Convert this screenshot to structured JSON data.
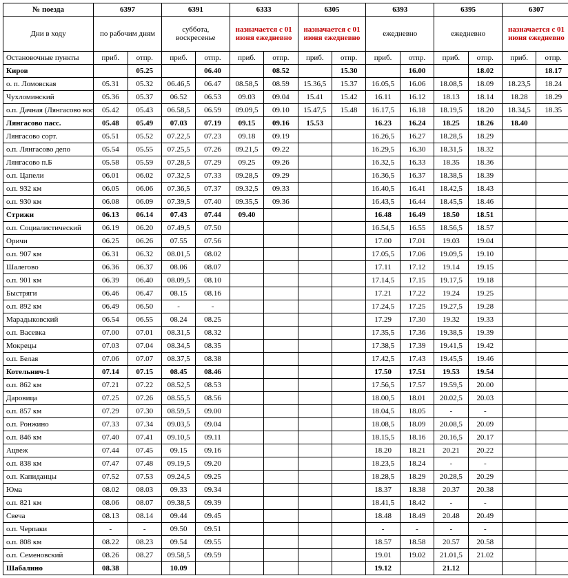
{
  "headers": {
    "train_no": "№ поезда",
    "days": "Дни в ходу",
    "stops": "Остановочные пункты",
    "arr": "приб.",
    "dep": "отпр."
  },
  "trains": [
    {
      "num": "6397",
      "days": "по рабочим дням",
      "red": false
    },
    {
      "num": "6391",
      "days": "суббота, воскресенье",
      "red": false
    },
    {
      "num": "6333",
      "days": "назначается с 01 июня ежедневно",
      "red": true
    },
    {
      "num": "6305",
      "days": "назначается с 01 июня ежедневно",
      "red": true
    },
    {
      "num": "6393",
      "days": "ежедневно",
      "red": false
    },
    {
      "num": "6395",
      "days": "ежедневно",
      "red": false
    },
    {
      "num": "6307",
      "days": "назначается с 01 июня ежедневно",
      "red": true
    }
  ],
  "rows": [
    {
      "name": "Киров",
      "bold": true,
      "cells": [
        "",
        "05.25",
        "",
        "06.40",
        "",
        "08.52",
        "",
        "15.30",
        "",
        "16.00",
        "",
        "18.02",
        "",
        "18.17"
      ]
    },
    {
      "name": "о. п. Ломовская",
      "cells": [
        "05.31",
        "05.32",
        "06.46,5",
        "06.47",
        "08.58,5",
        "08.59",
        "15.36,5",
        "15.37",
        "16.05,5",
        "16.06",
        "18.08,5",
        "18.09",
        "18.23,5",
        "18.24"
      ]
    },
    {
      "name": "Чухломинский",
      "cells": [
        "05.36",
        "05.37",
        "06.52",
        "06.53",
        "09.03",
        "09.04",
        "15.41",
        "15.42",
        "16.11",
        "16.12",
        "18.13",
        "18.14",
        "18.28",
        "18.29"
      ]
    },
    {
      "name": "о.п. Дачная (Лянгасово вост.)",
      "cells": [
        "05.42",
        "05.43",
        "06.58,5",
        "06.59",
        "09.09,5",
        "09.10",
        "15.47,5",
        "15.48",
        "16.17,5",
        "16.18",
        "18.19,5",
        "18.20",
        "18.34,5",
        "18.35"
      ]
    },
    {
      "name": "Лянгасово пасс.",
      "bold": true,
      "cells": [
        "05.48",
        "05.49",
        "07.03",
        "07.19",
        "09.15",
        "09.16",
        "15.53",
        "",
        "16.23",
        "16.24",
        "18.25",
        "18.26",
        "18.40",
        ""
      ]
    },
    {
      "name": "Лянгасово сорт.",
      "cells": [
        "05.51",
        "05.52",
        "07.22,5",
        "07.23",
        "09.18",
        "09.19",
        "",
        "",
        "16.26,5",
        "16.27",
        "18.28,5",
        "18.29",
        "",
        ""
      ]
    },
    {
      "name": "о.п. Лянгасово депо",
      "cells": [
        "05.54",
        "05.55",
        "07.25,5",
        "07.26",
        "09.21,5",
        "09.22",
        "",
        "",
        "16.29,5",
        "16.30",
        "18.31,5",
        "18.32",
        "",
        ""
      ]
    },
    {
      "name": "Лянгасово п.Б",
      "cells": [
        "05.58",
        "05.59",
        "07.28,5",
        "07.29",
        "09.25",
        "09.26",
        "",
        "",
        "16.32,5",
        "16.33",
        "18.35 ",
        "18.36",
        "",
        ""
      ]
    },
    {
      "name": "о.п. Цапели",
      "cells": [
        "06.01",
        "06.02",
        "07.32,5",
        "07.33",
        "09.28,5",
        "09.29",
        "",
        "",
        "16.36,5",
        "16.37",
        "18.38,5",
        "18.39",
        "",
        ""
      ]
    },
    {
      "name": "о.п. 932 км",
      "cells": [
        "06.05",
        "06.06",
        "07.36,5",
        "07.37",
        "09.32,5",
        "09.33",
        "",
        "",
        "16.40,5",
        "16.41",
        "18.42,5",
        "18.43",
        "",
        ""
      ]
    },
    {
      "name": "о.п. 930 км",
      "cells": [
        "06.08",
        "06.09",
        "07.39,5",
        "07.40",
        "09.35,5",
        "09.36",
        "",
        "",
        "16.43,5",
        "16.44",
        "18.45,5",
        "18.46",
        "",
        ""
      ]
    },
    {
      "name": "Стрижи",
      "bold": true,
      "cells": [
        "06.13",
        "06.14",
        "07.43 ",
        "07.44",
        "09.40",
        "",
        "",
        "",
        "16.48 ",
        "16.49",
        "18.50 ",
        "18.51",
        "",
        ""
      ]
    },
    {
      "name": "о.п. Социалистический",
      "cells": [
        "06.19",
        "06.20",
        "07.49,5",
        "07.50",
        "",
        "",
        "",
        "",
        "16.54,5",
        "16.55",
        "18.56,5",
        "18.57",
        "",
        ""
      ]
    },
    {
      "name": "Оричи",
      "cells": [
        "06.25",
        "06.26",
        "07.55 ",
        "07.56",
        "",
        "",
        "",
        "",
        "17.00 ",
        "17.01",
        "19.03 ",
        "19.04",
        "",
        ""
      ]
    },
    {
      "name": "о.п. 907 км",
      "cells": [
        "06.31",
        "06.32",
        "08.01,5",
        "08.02",
        "",
        "",
        "",
        "",
        "17.05,5",
        "17.06",
        "19.09,5",
        "19.10",
        "",
        ""
      ]
    },
    {
      "name": "Шалегово",
      "cells": [
        "06.36",
        "06.37",
        "08.06 ",
        "08.07",
        "",
        "",
        "",
        "",
        "17.11 ",
        "17.12",
        "19.14 ",
        "19.15",
        "",
        ""
      ]
    },
    {
      "name": "о.п. 901 км",
      "cells": [
        "06.39",
        "06.40",
        "08.09,5",
        "08.10",
        "",
        "",
        "",
        "",
        "17.14,5",
        "17.15",
        "19.17,5",
        "19.18",
        "",
        ""
      ]
    },
    {
      "name": "Быстряги",
      "cells": [
        "06.46",
        "06.47",
        "08.15 ",
        "08.16",
        "",
        "",
        "",
        "",
        "17.21 ",
        "17.22",
        "19.24 ",
        "19.25",
        "",
        ""
      ]
    },
    {
      "name": "о.п. 892 км",
      "cells": [
        "06.49",
        "06.50",
        "-",
        "-",
        "",
        "",
        "",
        "",
        "17.24,5",
        "17.25",
        "19.27,5",
        "19.28",
        "",
        ""
      ]
    },
    {
      "name": "Марадыковский",
      "cells": [
        "06.54",
        "06.55",
        "08.24 ",
        "08.25",
        "",
        "",
        "",
        "",
        "17.29 ",
        "17.30",
        "19.32 ",
        "19.33",
        "",
        ""
      ]
    },
    {
      "name": "о.п. Васевка",
      "cells": [
        "07.00",
        "07.01",
        "08.31,5",
        "08.32",
        "",
        "",
        "",
        "",
        "17.35,5",
        "17.36",
        "19.38,5",
        "19.39",
        "",
        ""
      ]
    },
    {
      "name": "Мокрецы",
      "cells": [
        "07.03",
        "07.04",
        "08.34,5",
        "08.35",
        "",
        "",
        "",
        "",
        "17.38,5",
        "17.39",
        "19.41,5",
        "19.42",
        "",
        ""
      ]
    },
    {
      "name": "о.п. Белая",
      "cells": [
        "07.06",
        "07.07",
        "08.37,5",
        "08.38",
        "",
        "",
        "",
        "",
        "17.42,5",
        "17.43",
        "19.45,5",
        "19.46",
        "",
        ""
      ]
    },
    {
      "name": "Котельнич-1",
      "bold": true,
      "cells": [
        "07.14",
        "07.15",
        "08.45 ",
        "08.46",
        "",
        "",
        "",
        "",
        "17.50 ",
        "17.51",
        "19.53 ",
        "19.54",
        "",
        ""
      ]
    },
    {
      "name": "о.п. 862 км",
      "cells": [
        "07.21",
        "07.22",
        "08.52,5",
        "08.53",
        "",
        "",
        "",
        "",
        "17.56,5",
        "17.57",
        "19.59,5",
        "20.00",
        "",
        ""
      ]
    },
    {
      "name": "Даровица",
      "cells": [
        "07.25",
        "07.26",
        "08.55,5",
        "08.56",
        "",
        "",
        "",
        "",
        "18.00,5",
        "18.01",
        "20.02,5",
        "20.03",
        "",
        ""
      ]
    },
    {
      "name": "о.п. 857 км",
      "cells": [
        "07.29",
        "07.30",
        "08.59,5",
        "09.00",
        "",
        "",
        "",
        "",
        "18.04,5",
        "18.05",
        "-",
        "-",
        "",
        ""
      ]
    },
    {
      "name": "о.п. Ронжино",
      "cells": [
        "07.33",
        "07.34",
        "09.03,5",
        "09.04",
        "",
        "",
        "",
        "",
        "18.08,5",
        "18.09",
        "20.08,5",
        "20.09",
        "",
        ""
      ]
    },
    {
      "name": "о.п. 846 км",
      "cells": [
        "07.40",
        "07.41",
        "09.10,5",
        "09.11",
        "",
        "",
        "",
        "",
        "18.15,5",
        "18.16",
        "20.16,5",
        "20.17",
        "",
        ""
      ]
    },
    {
      "name": "Ацвеж",
      "cells": [
        "07.44",
        "07.45",
        "09.15 ",
        "09.16",
        "",
        "",
        "",
        "",
        "18.20 ",
        "18.21",
        "20.21 ",
        "20.22",
        "",
        ""
      ]
    },
    {
      "name": "о.п. 838 км",
      "cells": [
        "07.47",
        "07.48",
        "09.19,5",
        "09.20",
        "",
        "",
        "",
        "",
        "18.23,5",
        "18.24",
        "-",
        "-",
        "",
        ""
      ]
    },
    {
      "name": "о.п. Капиданцы",
      "cells": [
        "07.52",
        "07.53",
        "09.24,5",
        "09.25",
        "",
        "",
        "",
        "",
        "18.28,5",
        "18.29",
        "20.28,5",
        "20.29",
        "",
        ""
      ]
    },
    {
      "name": "Юма",
      "cells": [
        "08.02",
        "08.03",
        "09.33 ",
        "09.34",
        "",
        "",
        "",
        "",
        "18.37 ",
        "18.38",
        "20.37 ",
        "20.38",
        "",
        ""
      ]
    },
    {
      "name": "о.п. 821 км",
      "cells": [
        "08.06",
        "08.07",
        "09.38,5",
        "09.39",
        "",
        "",
        "",
        "",
        "18.41,5",
        "18.42",
        "-",
        "-",
        "",
        ""
      ]
    },
    {
      "name": "Свеча",
      "cells": [
        "08.13",
        "08.14",
        "09.44 ",
        "09.45",
        "",
        "",
        "",
        "",
        "18.48 ",
        "18.49",
        "20.48 ",
        "20.49",
        "",
        ""
      ]
    },
    {
      "name": "о.п. Черпаки",
      "cells": [
        "-",
        "-",
        "09.50 ",
        "09.51",
        "",
        "",
        "",
        "",
        "-",
        "-",
        "-",
        "-",
        "",
        ""
      ]
    },
    {
      "name": "о.п. 808 км",
      "cells": [
        "08.22",
        "08.23",
        "09.54 ",
        "09.55",
        "",
        "",
        "",
        "",
        "18.57 ",
        "18.58",
        "20.57 ",
        "20.58",
        "",
        ""
      ]
    },
    {
      "name": "о.п. Семеновский",
      "cells": [
        "08.26",
        "08.27",
        "09.58,5",
        "09.59",
        "",
        "",
        "",
        "",
        "19.01 ",
        "19.02",
        "21.01,5",
        "21.02",
        "",
        ""
      ]
    },
    {
      "name": "Шабалино",
      "bold": true,
      "cells": [
        "08.38",
        "",
        "10.09 ",
        "",
        "",
        "",
        "",
        "",
        "19.12 ",
        "",
        "21.12 ",
        "",
        "",
        ""
      ]
    }
  ]
}
